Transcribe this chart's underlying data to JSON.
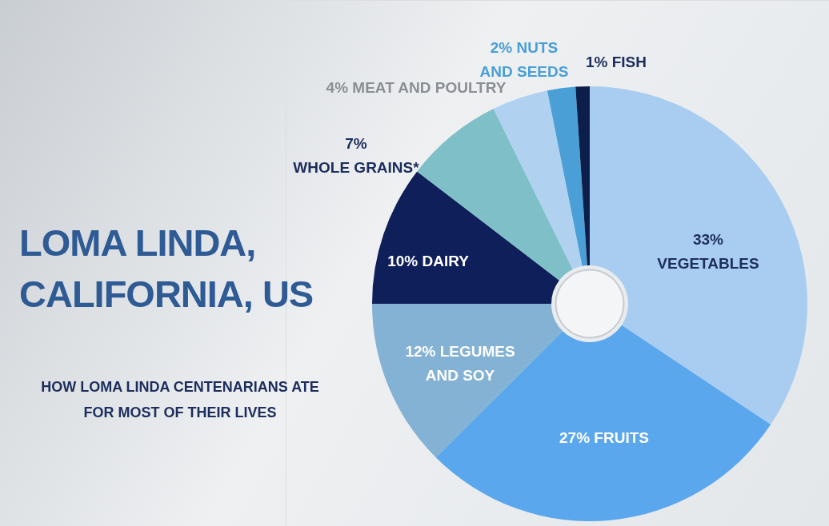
{
  "chart_data": {
    "type": "donut",
    "title": "LOMA LINDA, CALIFORNIA, US",
    "subtitle": "HOW LOMA LINDA CENTENARIANS ATE FOR MOST OF THEIR LIVES",
    "categories": [
      "VEGETABLES",
      "FRUITS",
      "LEGUMES AND SOY",
      "DAIRY",
      "WHOLE GRAINS*",
      "MEAT AND POULTRY",
      "NUTS AND SEEDS",
      "FISH"
    ],
    "values": [
      33,
      27,
      12,
      10,
      7,
      4,
      2,
      1
    ],
    "value_labels": [
      "33%",
      "27%",
      "12%",
      "10%",
      "7%",
      "4%",
      "2%",
      "1%"
    ],
    "colors": [
      "#a9cdf0",
      "#5aa7ee",
      "#84b2d5",
      "#0e1f5a",
      "#7fc0c8",
      "#b0d2f0",
      "#4a9fd6",
      "#0c1e4a"
    ]
  }
}
